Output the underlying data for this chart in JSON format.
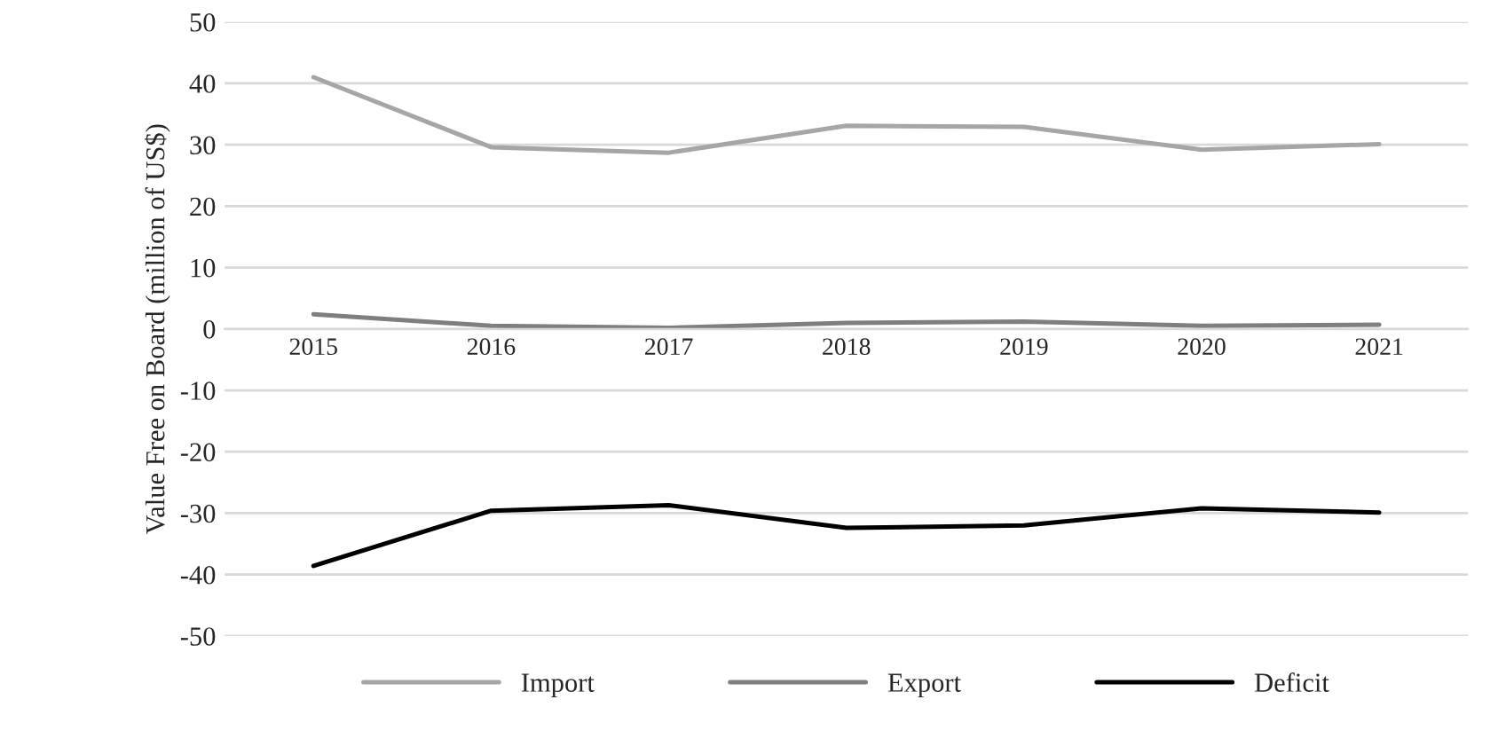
{
  "chart_data": {
    "type": "line",
    "ylabel": "Value Free on Board (million of US$)",
    "categories": [
      "2015",
      "2016",
      "2017",
      "2018",
      "2019",
      "2020",
      "2021"
    ],
    "series": [
      {
        "name": "Import",
        "color": "#a6a6a6",
        "values": [
          41.0,
          29.6,
          28.7,
          33.1,
          32.9,
          29.2,
          30.1
        ]
      },
      {
        "name": "Export",
        "color": "#7f7f7f",
        "values": [
          2.4,
          0.5,
          0.2,
          1.0,
          1.2,
          0.5,
          0.7
        ]
      },
      {
        "name": "Deficit",
        "color": "#000000",
        "values": [
          -38.6,
          -29.6,
          -28.7,
          -32.4,
          -32.0,
          -29.2,
          -29.9
        ]
      }
    ],
    "ylim": [
      -50,
      50
    ],
    "yticks": [
      -50,
      -40,
      -30,
      -20,
      -10,
      0,
      10,
      20,
      30,
      40,
      50
    ],
    "grid": "y",
    "legend": "bottom",
    "marker": "none",
    "line_style": "solid"
  }
}
